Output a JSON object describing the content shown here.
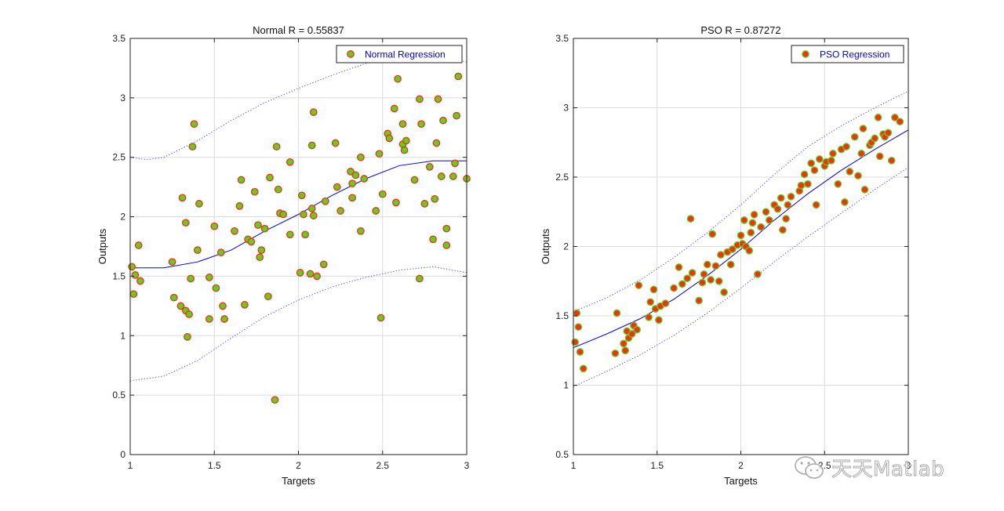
{
  "watermark": {
    "text": "天天Matlab",
    "icon": "wechat-icon"
  },
  "chart_data": [
    {
      "type": "scatter",
      "title": "Normal R =  0.55837",
      "xlabel": "Targets",
      "ylabel": "Outputs",
      "xlim": [
        1,
        3
      ],
      "ylim": [
        0,
        3.5
      ],
      "xticks": [
        "1",
        "1.5",
        "2",
        "2.5",
        "3"
      ],
      "yticks": [
        "0",
        "0.5",
        "1",
        "1.5",
        "2",
        "2.5",
        "3",
        "3.5"
      ],
      "grid": true,
      "legend": {
        "label": "Normal Regression",
        "placement": "top-right"
      },
      "colors": {
        "marker_fill": "#66cc22",
        "marker_edge": "#ee3311",
        "fit": "#0000ee",
        "bounds": "#3344ff"
      },
      "points": [
        [
          1.01,
          1.58
        ],
        [
          1.03,
          1.51
        ],
        [
          1.02,
          1.35
        ],
        [
          1.05,
          1.76
        ],
        [
          1.06,
          1.46
        ],
        [
          1.25,
          1.62
        ],
        [
          1.26,
          1.32
        ],
        [
          1.3,
          1.25
        ],
        [
          1.31,
          2.16
        ],
        [
          1.33,
          1.21
        ],
        [
          1.33,
          1.95
        ],
        [
          1.34,
          0.99
        ],
        [
          1.35,
          1.18
        ],
        [
          1.36,
          1.48
        ],
        [
          1.37,
          2.59
        ],
        [
          1.38,
          2.78
        ],
        [
          1.4,
          1.72
        ],
        [
          1.41,
          2.11
        ],
        [
          1.47,
          1.49
        ],
        [
          1.47,
          1.14
        ],
        [
          1.5,
          1.92
        ],
        [
          1.51,
          1.4
        ],
        [
          1.54,
          1.7
        ],
        [
          1.55,
          1.25
        ],
        [
          1.56,
          1.14
        ],
        [
          1.62,
          1.88
        ],
        [
          1.65,
          2.09
        ],
        [
          1.66,
          2.31
        ],
        [
          1.68,
          1.26
        ],
        [
          1.7,
          1.81
        ],
        [
          1.72,
          1.79
        ],
        [
          1.74,
          2.21
        ],
        [
          1.76,
          1.93
        ],
        [
          1.77,
          1.66
        ],
        [
          1.78,
          1.72
        ],
        [
          1.8,
          1.9
        ],
        [
          1.82,
          1.33
        ],
        [
          1.83,
          2.33
        ],
        [
          1.86,
          0.46
        ],
        [
          1.87,
          2.59
        ],
        [
          1.88,
          2.23
        ],
        [
          1.89,
          2.03
        ],
        [
          1.91,
          2.02
        ],
        [
          1.95,
          1.85
        ],
        [
          1.95,
          2.46
        ],
        [
          2.01,
          1.53
        ],
        [
          2.02,
          2.18
        ],
        [
          2.03,
          2.02
        ],
        [
          2.04,
          1.85
        ],
        [
          2.07,
          1.52
        ],
        [
          2.08,
          2.6
        ],
        [
          2.08,
          2.07
        ],
        [
          2.09,
          2.88
        ],
        [
          2.09,
          2.01
        ],
        [
          2.11,
          1.5
        ],
        [
          2.15,
          1.6
        ],
        [
          2.16,
          2.13
        ],
        [
          2.22,
          2.62
        ],
        [
          2.23,
          2.25
        ],
        [
          2.25,
          2.05
        ],
        [
          2.31,
          2.38
        ],
        [
          2.32,
          2.16
        ],
        [
          2.32,
          2.28
        ],
        [
          2.34,
          2.35
        ],
        [
          2.37,
          1.88
        ],
        [
          2.37,
          2.5
        ],
        [
          2.39,
          2.32
        ],
        [
          2.46,
          2.05
        ],
        [
          2.48,
          2.53
        ],
        [
          2.49,
          1.15
        ],
        [
          2.5,
          2.19
        ],
        [
          2.53,
          2.7
        ],
        [
          2.54,
          2.66
        ],
        [
          2.57,
          2.91
        ],
        [
          2.58,
          2.12
        ],
        [
          2.59,
          3.16
        ],
        [
          2.62,
          2.61
        ],
        [
          2.62,
          2.78
        ],
        [
          2.63,
          2.56
        ],
        [
          2.64,
          2.64
        ],
        [
          2.69,
          2.31
        ],
        [
          2.72,
          2.99
        ],
        [
          2.72,
          1.48
        ],
        [
          2.73,
          2.78
        ],
        [
          2.75,
          2.11
        ],
        [
          2.78,
          2.42
        ],
        [
          2.8,
          1.81
        ],
        [
          2.81,
          2.15
        ],
        [
          2.82,
          2.62
        ],
        [
          2.83,
          2.99
        ],
        [
          2.85,
          2.34
        ],
        [
          2.86,
          2.81
        ],
        [
          2.88,
          1.9
        ],
        [
          2.88,
          1.76
        ],
        [
          2.92,
          2.34
        ],
        [
          2.93,
          2.45
        ],
        [
          2.94,
          2.85
        ],
        [
          2.95,
          3.18
        ],
        [
          3.0,
          2.32
        ]
      ],
      "fit_curve": [
        [
          1.0,
          1.57
        ],
        [
          1.2,
          1.57
        ],
        [
          1.4,
          1.62
        ],
        [
          1.6,
          1.72
        ],
        [
          1.8,
          1.88
        ],
        [
          2.0,
          2.02
        ],
        [
          2.2,
          2.18
        ],
        [
          2.4,
          2.32
        ],
        [
          2.6,
          2.43
        ],
        [
          2.8,
          2.47
        ],
        [
          3.0,
          2.47
        ]
      ],
      "upper_bound": [
        [
          1.0,
          2.5
        ],
        [
          1.1,
          2.48
        ],
        [
          1.2,
          2.5
        ],
        [
          1.4,
          2.64
        ],
        [
          1.6,
          2.81
        ],
        [
          1.8,
          2.96
        ],
        [
          2.0,
          3.08
        ],
        [
          2.2,
          3.19
        ],
        [
          2.4,
          3.29
        ],
        [
          2.6,
          3.35
        ],
        [
          2.8,
          3.35
        ],
        [
          2.9,
          3.34
        ],
        [
          3.0,
          3.3
        ]
      ],
      "lower_bound": [
        [
          1.0,
          0.62
        ],
        [
          1.2,
          0.66
        ],
        [
          1.4,
          0.79
        ],
        [
          1.6,
          0.98
        ],
        [
          1.8,
          1.16
        ],
        [
          2.0,
          1.3
        ],
        [
          2.2,
          1.41
        ],
        [
          2.4,
          1.49
        ],
        [
          2.6,
          1.55
        ],
        [
          2.8,
          1.58
        ],
        [
          3.0,
          1.53
        ]
      ]
    },
    {
      "type": "scatter",
      "title": "PSO R =  0.87272",
      "xlabel": "Targets",
      "ylabel": "Outputs",
      "xlim": [
        1,
        3
      ],
      "ylim": [
        0.5,
        3.5
      ],
      "xticks": [
        "1",
        "1.5",
        "2",
        "2.5",
        "3"
      ],
      "yticks": [
        "0.5",
        "1",
        "1.5",
        "2",
        "2.5",
        "3",
        "3.5"
      ],
      "grid": true,
      "legend": {
        "label": "PSO Regression",
        "placement": "top-right"
      },
      "colors": {
        "marker_fill": "#ee3311",
        "marker_edge": "#66cc22",
        "fit": "#0000ee",
        "bounds": "#3344ff"
      },
      "points": [
        [
          1.01,
          1.31
        ],
        [
          1.02,
          1.52
        ],
        [
          1.03,
          1.42
        ],
        [
          1.04,
          1.24
        ],
        [
          1.06,
          1.12
        ],
        [
          1.25,
          1.23
        ],
        [
          1.26,
          1.52
        ],
        [
          1.3,
          1.3
        ],
        [
          1.31,
          1.25
        ],
        [
          1.32,
          1.39
        ],
        [
          1.33,
          1.34
        ],
        [
          1.35,
          1.37
        ],
        [
          1.36,
          1.43
        ],
        [
          1.38,
          1.4
        ],
        [
          1.39,
          1.72
        ],
        [
          1.45,
          1.49
        ],
        [
          1.46,
          1.6
        ],
        [
          1.48,
          1.69
        ],
        [
          1.49,
          1.55
        ],
        [
          1.51,
          1.47
        ],
        [
          1.52,
          1.57
        ],
        [
          1.55,
          1.59
        ],
        [
          1.6,
          1.7
        ],
        [
          1.63,
          1.85
        ],
        [
          1.65,
          1.73
        ],
        [
          1.68,
          1.77
        ],
        [
          1.7,
          2.2
        ],
        [
          1.71,
          1.81
        ],
        [
          1.75,
          1.61
        ],
        [
          1.77,
          1.74
        ],
        [
          1.78,
          1.8
        ],
        [
          1.8,
          1.87
        ],
        [
          1.82,
          1.76
        ],
        [
          1.83,
          2.09
        ],
        [
          1.85,
          1.86
        ],
        [
          1.87,
          1.75
        ],
        [
          1.88,
          1.94
        ],
        [
          1.9,
          1.67
        ],
        [
          1.92,
          1.96
        ],
        [
          1.94,
          1.87
        ],
        [
          1.95,
          1.98
        ],
        [
          1.98,
          2.01
        ],
        [
          2.0,
          2.08
        ],
        [
          2.01,
          2.02
        ],
        [
          2.02,
          2.19
        ],
        [
          2.03,
          2.0
        ],
        [
          2.05,
          1.97
        ],
        [
          2.06,
          2.1
        ],
        [
          2.07,
          2.17
        ],
        [
          2.08,
          2.23
        ],
        [
          2.1,
          1.8
        ],
        [
          2.12,
          2.14
        ],
        [
          2.15,
          2.25
        ],
        [
          2.17,
          2.19
        ],
        [
          2.2,
          2.3
        ],
        [
          2.22,
          2.27
        ],
        [
          2.24,
          2.35
        ],
        [
          2.25,
          2.12
        ],
        [
          2.27,
          2.2
        ],
        [
          2.28,
          2.3
        ],
        [
          2.3,
          2.36
        ],
        [
          2.35,
          2.4
        ],
        [
          2.36,
          2.44
        ],
        [
          2.38,
          2.52
        ],
        [
          2.4,
          2.45
        ],
        [
          2.42,
          2.6
        ],
        [
          2.44,
          2.55
        ],
        [
          2.45,
          2.3
        ],
        [
          2.47,
          2.63
        ],
        [
          2.5,
          2.58
        ],
        [
          2.51,
          2.61
        ],
        [
          2.54,
          2.62
        ],
        [
          2.55,
          2.67
        ],
        [
          2.58,
          2.45
        ],
        [
          2.6,
          2.7
        ],
        [
          2.62,
          2.32
        ],
        [
          2.63,
          2.72
        ],
        [
          2.65,
          2.54
        ],
        [
          2.68,
          2.79
        ],
        [
          2.7,
          2.51
        ],
        [
          2.72,
          2.67
        ],
        [
          2.73,
          2.85
        ],
        [
          2.74,
          2.41
        ],
        [
          2.77,
          2.73
        ],
        [
          2.78,
          2.75
        ],
        [
          2.8,
          2.78
        ],
        [
          2.82,
          2.93
        ],
        [
          2.83,
          2.65
        ],
        [
          2.85,
          2.81
        ],
        [
          2.86,
          2.79
        ],
        [
          2.88,
          2.82
        ],
        [
          2.9,
          2.62
        ],
        [
          2.92,
          2.93
        ],
        [
          2.95,
          2.9
        ]
      ],
      "fit_curve": [
        [
          1.0,
          1.27
        ],
        [
          1.2,
          1.37
        ],
        [
          1.4,
          1.48
        ],
        [
          1.6,
          1.62
        ],
        [
          1.8,
          1.79
        ],
        [
          2.0,
          1.98
        ],
        [
          2.2,
          2.19
        ],
        [
          2.4,
          2.38
        ],
        [
          2.6,
          2.55
        ],
        [
          2.8,
          2.7
        ],
        [
          3.0,
          2.84
        ]
      ],
      "upper_bound": [
        [
          1.0,
          1.53
        ],
        [
          1.2,
          1.63
        ],
        [
          1.4,
          1.76
        ],
        [
          1.6,
          1.92
        ],
        [
          1.8,
          2.1
        ],
        [
          2.0,
          2.3
        ],
        [
          2.2,
          2.52
        ],
        [
          2.4,
          2.72
        ],
        [
          2.6,
          2.87
        ],
        [
          2.8,
          3.0
        ],
        [
          3.0,
          3.12
        ]
      ],
      "lower_bound": [
        [
          1.0,
          0.99
        ],
        [
          1.2,
          1.1
        ],
        [
          1.4,
          1.22
        ],
        [
          1.6,
          1.36
        ],
        [
          1.8,
          1.52
        ],
        [
          2.0,
          1.7
        ],
        [
          2.2,
          1.89
        ],
        [
          2.4,
          2.07
        ],
        [
          2.6,
          2.24
        ],
        [
          2.8,
          2.41
        ],
        [
          3.0,
          2.57
        ]
      ]
    }
  ]
}
